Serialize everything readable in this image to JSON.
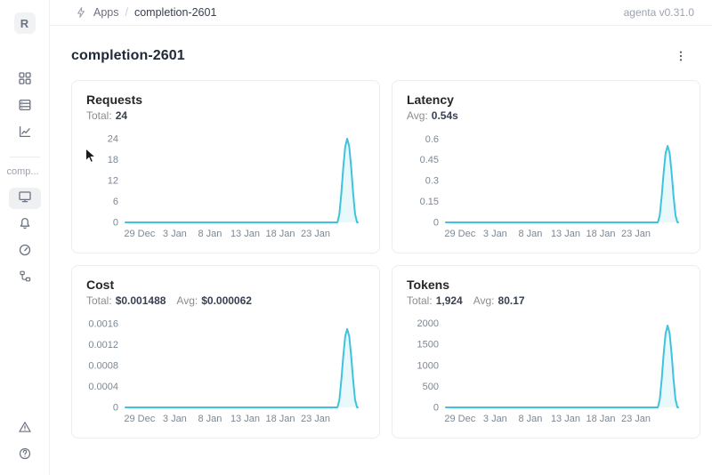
{
  "app": {
    "brand_version": "agenta v0.31.0"
  },
  "header": {
    "breadcrumb": {
      "section": "Apps",
      "separator": "/",
      "current": "completion-2601"
    }
  },
  "sidebar": {
    "workspace_initial": "R",
    "project_label": "comp...",
    "accent_colors": {
      "active_item_bg": "#eef0f2",
      "icon": "#6b7280"
    }
  },
  "page": {
    "title": "completion-2601"
  },
  "theme": {
    "line_color": "#3EC3DE",
    "card_border": "#ebedf0",
    "muted_text": "#8c8c8c"
  },
  "chart_data": [
    {
      "type": "line",
      "title": "Requests",
      "stats": [
        {
          "label": "Total:",
          "value": "24"
        }
      ],
      "x_tick_labels": [
        "29 Dec",
        "3 Jan",
        "8 Jan",
        "13 Jan",
        "18 Jan",
        "23 Jan"
      ],
      "x_tick_days": [
        2,
        7,
        12,
        17,
        22,
        27
      ],
      "x_domain": [
        0,
        33
      ],
      "y_ticks": [
        0,
        6,
        12,
        18,
        24
      ],
      "ylim": [
        0,
        25.5
      ],
      "grid": false,
      "legend": "none",
      "series": [
        {
          "name": "Requests",
          "color": "#3EC3DE",
          "fill_opacity": 0.12,
          "points": [
            [
              0,
              0
            ],
            [
              30.1,
              0
            ],
            [
              30.38,
              2.3
            ],
            [
              30.66,
              8.3
            ],
            [
              30.94,
              15.7
            ],
            [
              31.22,
              21.7
            ],
            [
              31.5,
              24
            ],
            [
              31.78,
              21.7
            ],
            [
              32.06,
              15.7
            ],
            [
              32.34,
              8.3
            ],
            [
              32.62,
              2.3
            ],
            [
              32.9,
              0
            ],
            [
              33,
              0
            ]
          ]
        }
      ]
    },
    {
      "type": "line",
      "title": "Latency",
      "stats": [
        {
          "label": "Avg:",
          "value": "0.54s"
        }
      ],
      "x_tick_labels": [
        "29 Dec",
        "3 Jan",
        "8 Jan",
        "13 Jan",
        "18 Jan",
        "23 Jan"
      ],
      "x_tick_days": [
        2,
        7,
        12,
        17,
        22,
        27
      ],
      "x_domain": [
        0,
        33
      ],
      "y_ticks": [
        0,
        0.15,
        0.3,
        0.45,
        0.6
      ],
      "ylim": [
        0,
        0.64
      ],
      "grid": false,
      "legend": "none",
      "series": [
        {
          "name": "Latency",
          "color": "#3EC3DE",
          "fill_opacity": 0.12,
          "points": [
            [
              0,
              0
            ],
            [
              30.1,
              0
            ],
            [
              30.38,
              0.05
            ],
            [
              30.66,
              0.19
            ],
            [
              30.94,
              0.36
            ],
            [
              31.22,
              0.5
            ],
            [
              31.5,
              0.55
            ],
            [
              31.78,
              0.5
            ],
            [
              32.06,
              0.36
            ],
            [
              32.34,
              0.19
            ],
            [
              32.62,
              0.05
            ],
            [
              32.9,
              0
            ],
            [
              33,
              0
            ]
          ]
        }
      ]
    },
    {
      "type": "line",
      "title": "Cost",
      "stats": [
        {
          "label": "Total:",
          "value": "$0.001488"
        },
        {
          "label": "Avg:",
          "value": "$0.000062"
        }
      ],
      "x_tick_labels": [
        "29 Dec",
        "3 Jan",
        "8 Jan",
        "13 Jan",
        "18 Jan",
        "23 Jan"
      ],
      "x_tick_days": [
        2,
        7,
        12,
        17,
        22,
        27
      ],
      "x_domain": [
        0,
        33
      ],
      "y_ticks": [
        0,
        0.0004,
        0.0008,
        0.0012,
        0.0016
      ],
      "ylim": [
        0,
        0.0017
      ],
      "grid": false,
      "legend": "none",
      "series": [
        {
          "name": "Cost",
          "color": "#3EC3DE",
          "fill_opacity": 0.12,
          "points": [
            [
              0,
              0
            ],
            [
              30.1,
              0
            ],
            [
              30.38,
              0.00014
            ],
            [
              30.66,
              0.00052
            ],
            [
              30.94,
              0.00098
            ],
            [
              31.22,
              0.00136
            ],
            [
              31.5,
              0.0015
            ],
            [
              31.78,
              0.00136
            ],
            [
              32.06,
              0.00098
            ],
            [
              32.34,
              0.00052
            ],
            [
              32.62,
              0.00014
            ],
            [
              32.9,
              0
            ],
            [
              33,
              0
            ]
          ]
        }
      ]
    },
    {
      "type": "line",
      "title": "Tokens",
      "stats": [
        {
          "label": "Total:",
          "value": "1,924"
        },
        {
          "label": "Avg:",
          "value": "80.17"
        }
      ],
      "x_tick_labels": [
        "29 Dec",
        "3 Jan",
        "8 Jan",
        "13 Jan",
        "18 Jan",
        "23 Jan"
      ],
      "x_tick_days": [
        2,
        7,
        12,
        17,
        22,
        27
      ],
      "x_domain": [
        0,
        33
      ],
      "y_ticks": [
        0,
        500,
        1000,
        1500,
        2000
      ],
      "ylim": [
        0,
        2120
      ],
      "grid": false,
      "legend": "none",
      "series": [
        {
          "name": "Tokens",
          "color": "#3EC3DE",
          "fill_opacity": 0.12,
          "points": [
            [
              0,
              0
            ],
            [
              30.1,
              0
            ],
            [
              30.38,
              185
            ],
            [
              30.66,
              673
            ],
            [
              30.94,
              1277
            ],
            [
              31.22,
              1765
            ],
            [
              31.5,
              1950
            ],
            [
              31.78,
              1765
            ],
            [
              32.06,
              1277
            ],
            [
              32.34,
              673
            ],
            [
              32.62,
              185
            ],
            [
              32.9,
              0
            ],
            [
              33,
              0
            ]
          ]
        }
      ]
    }
  ]
}
